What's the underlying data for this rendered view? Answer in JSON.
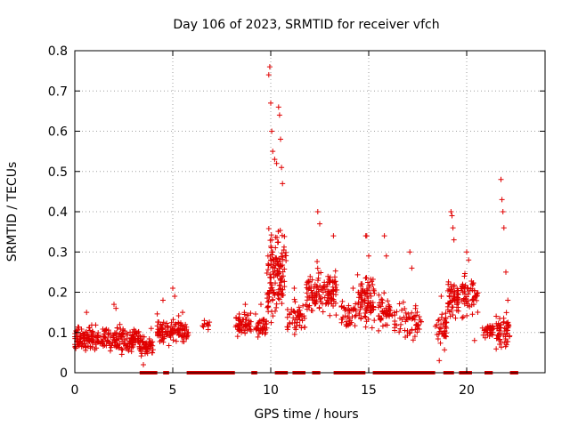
{
  "chart_data": {
    "type": "scatter",
    "title": "Day 106 of 2023, SRMTID for receiver vfch",
    "xlabel": "GPS time / hours",
    "ylabel": "SRMTID / TECUs",
    "xlim": [
      0,
      24
    ],
    "ylim": [
      0,
      0.8
    ],
    "xticks": [
      0,
      5,
      10,
      15,
      20
    ],
    "yticks": [
      0,
      0.1,
      0.2,
      0.3,
      0.4,
      0.5,
      0.6,
      0.7,
      0.8
    ],
    "xtick_labels": [
      "0",
      "5",
      "10",
      "15",
      "20"
    ],
    "ytick_labels": [
      "0",
      "0.1",
      "0.2",
      "0.3",
      "0.4",
      "0.5",
      "0.6",
      "0.7",
      "0.8"
    ],
    "grid": true,
    "marker": "plus",
    "color": "#e00000",
    "series": [
      {
        "name": "SRMTID",
        "clusters": [
          {
            "x": [
              0.0,
              3.3
            ],
            "y": [
              0.04,
              0.13
            ],
            "n": 260,
            "peaks": [
              [
                0.6,
                0.15
              ],
              [
                2.0,
                0.17
              ],
              [
                2.1,
                0.16
              ],
              [
                2.3,
                0.12
              ]
            ]
          },
          {
            "x": [
              3.3,
              4.0
            ],
            "y": [
              0.03,
              0.1
            ],
            "n": 60,
            "peaks": [
              [
                3.5,
                0.02
              ],
              [
                3.9,
                0.11
              ]
            ]
          },
          {
            "x": [
              4.2,
              5.8
            ],
            "y": [
              0.06,
              0.15
            ],
            "n": 110,
            "peaks": [
              [
                4.5,
                0.18
              ],
              [
                5.0,
                0.21
              ],
              [
                5.1,
                0.19
              ],
              [
                5.5,
                0.15
              ]
            ]
          },
          {
            "x": [
              6.5,
              6.9
            ],
            "y": [
              0.1,
              0.14
            ],
            "n": 10,
            "peaks": []
          },
          {
            "x": [
              8.2,
              9.0
            ],
            "y": [
              0.08,
              0.16
            ],
            "n": 60,
            "peaks": [
              [
                8.7,
                0.17
              ]
            ]
          },
          {
            "x": [
              9.2,
              9.8
            ],
            "y": [
              0.08,
              0.15
            ],
            "n": 40,
            "peaks": [
              [
                9.5,
                0.17
              ]
            ]
          },
          {
            "x": [
              9.8,
              10.8
            ],
            "y": [
              0.1,
              0.4
            ],
            "n": 140,
            "peaks": [
              [
                9.9,
                0.74
              ],
              [
                9.95,
                0.76
              ],
              [
                10.0,
                0.67
              ],
              [
                10.05,
                0.6
              ],
              [
                10.1,
                0.55
              ],
              [
                10.2,
                0.53
              ],
              [
                10.3,
                0.52
              ],
              [
                10.4,
                0.66
              ],
              [
                10.45,
                0.64
              ],
              [
                10.5,
                0.58
              ],
              [
                10.55,
                0.51
              ],
              [
                10.6,
                0.47
              ]
            ]
          },
          {
            "x": [
              10.8,
              11.8
            ],
            "y": [
              0.09,
              0.19
            ],
            "n": 50,
            "peaks": [
              [
                11.2,
                0.21
              ]
            ]
          },
          {
            "x": [
              11.8,
              13.4
            ],
            "y": [
              0.12,
              0.28
            ],
            "n": 130,
            "peaks": [
              [
                12.4,
                0.4
              ],
              [
                12.5,
                0.37
              ],
              [
                13.2,
                0.34
              ]
            ]
          },
          {
            "x": [
              13.6,
              14.4
            ],
            "y": [
              0.1,
              0.19
            ],
            "n": 40,
            "peaks": [
              [
                14.2,
                0.21
              ]
            ]
          },
          {
            "x": [
              14.4,
              15.3
            ],
            "y": [
              0.1,
              0.26
            ],
            "n": 90,
            "peaks": [
              [
                14.85,
                0.34
              ],
              [
                14.9,
                0.34
              ],
              [
                15.0,
                0.29
              ]
            ]
          },
          {
            "x": [
              15.5,
              16.2
            ],
            "y": [
              0.09,
              0.21
            ],
            "n": 50,
            "peaks": [
              [
                15.8,
                0.34
              ],
              [
                15.9,
                0.29
              ]
            ]
          },
          {
            "x": [
              16.3,
              17.8
            ],
            "y": [
              0.07,
              0.18
            ],
            "n": 60,
            "peaks": [
              [
                17.1,
                0.3
              ],
              [
                17.2,
                0.26
              ]
            ]
          },
          {
            "x": [
              18.4,
              19.0
            ],
            "y": [
              0.05,
              0.17
            ],
            "n": 40,
            "peaks": [
              [
                18.6,
                0.03
              ],
              [
                18.7,
                0.19
              ]
            ]
          },
          {
            "x": [
              19.0,
              19.6
            ],
            "y": [
              0.12,
              0.25
            ],
            "n": 60,
            "peaks": [
              [
                19.2,
                0.4
              ],
              [
                19.25,
                0.39
              ],
              [
                19.3,
                0.36
              ],
              [
                19.35,
                0.33
              ]
            ]
          },
          {
            "x": [
              19.7,
              20.6
            ],
            "y": [
              0.12,
              0.26
            ],
            "n": 60,
            "peaks": [
              [
                20.0,
                0.3
              ],
              [
                20.1,
                0.28
              ],
              [
                20.4,
                0.08
              ]
            ]
          },
          {
            "x": [
              20.8,
              21.4
            ],
            "y": [
              0.08,
              0.13
            ],
            "n": 30,
            "peaks": []
          },
          {
            "x": [
              21.5,
              22.2
            ],
            "y": [
              0.05,
              0.16
            ],
            "n": 60,
            "peaks": [
              [
                21.75,
                0.48
              ],
              [
                21.8,
                0.43
              ],
              [
                21.85,
                0.4
              ],
              [
                21.9,
                0.36
              ],
              [
                22.0,
                0.25
              ],
              [
                22.1,
                0.18
              ]
            ]
          }
        ]
      }
    ],
    "zero_markers": {
      "y": 0,
      "ranges": [
        [
          3.4,
          4.2
        ],
        [
          4.6,
          4.8
        ],
        [
          5.8,
          8.1
        ],
        [
          9.1,
          9.3
        ],
        [
          10.3,
          10.8
        ],
        [
          11.2,
          11.7
        ],
        [
          12.2,
          12.5
        ],
        [
          13.3,
          14.8
        ],
        [
          15.3,
          18.4
        ],
        [
          18.9,
          19.3
        ],
        [
          19.7,
          20.2
        ],
        [
          21.0,
          21.3
        ],
        [
          22.3,
          22.6
        ]
      ]
    }
  }
}
